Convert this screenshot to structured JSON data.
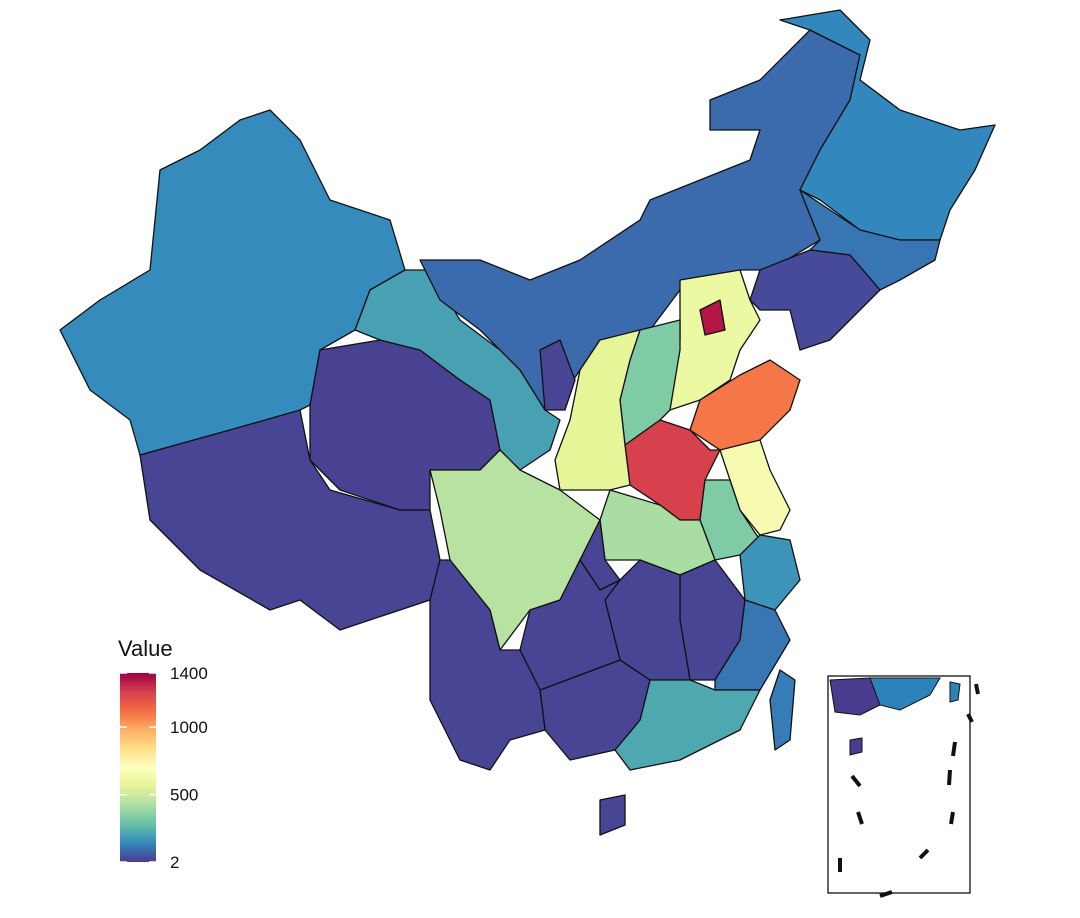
{
  "legend": {
    "title": "Value",
    "range": [
      2,
      1400
    ],
    "ticks": [
      1400,
      1000,
      500,
      2
    ],
    "colors": [
      "#4b3b8f",
      "#3288bd",
      "#66c2a5",
      "#abdda4",
      "#e6f598",
      "#ffffbf",
      "#fee08b",
      "#fdae61",
      "#f46d43",
      "#d53e4f",
      "#9e0142"
    ]
  },
  "regions": [
    150,
    20,
    15,
    200,
    90,
    140,
    110,
    30,
    600,
    1350,
    330,
    1100,
    1250,
    560,
    20,
    650,
    330,
    420,
    450,
    20,
    170,
    20,
    20,
    110,
    220,
    20,
    20,
    20,
    20,
    120
  ]
}
